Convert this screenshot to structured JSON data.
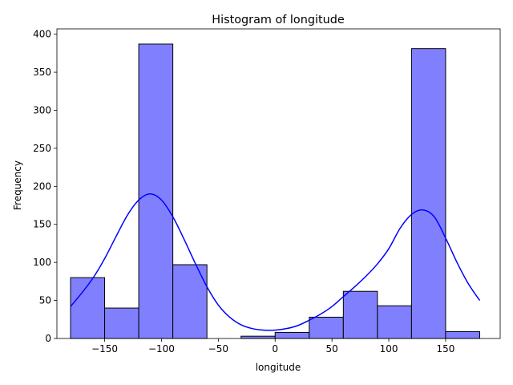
{
  "chart_data": {
    "type": "bar",
    "title": "Histogram of longitude",
    "xlabel": "longitude",
    "ylabel": "Frequency",
    "bins": [
      {
        "start": -180,
        "end": -150,
        "count": 80
      },
      {
        "start": -150,
        "end": -120,
        "count": 40
      },
      {
        "start": -120,
        "end": -90,
        "count": 387
      },
      {
        "start": -90,
        "end": -60,
        "count": 97
      },
      {
        "start": -60,
        "end": -30,
        "count": 0
      },
      {
        "start": -30,
        "end": 0,
        "count": 3
      },
      {
        "start": 0,
        "end": 30,
        "count": 8
      },
      {
        "start": 30,
        "end": 60,
        "count": 28
      },
      {
        "start": 60,
        "end": 90,
        "count": 62
      },
      {
        "start": 90,
        "end": 120,
        "count": 43
      },
      {
        "start": 120,
        "end": 150,
        "count": 381
      },
      {
        "start": 150,
        "end": 180,
        "count": 9
      }
    ],
    "kde": {
      "name": "density estimate",
      "x": [
        -180,
        -170,
        -160,
        -150,
        -140,
        -130,
        -120,
        -110,
        -100,
        -90,
        -80,
        -70,
        -60,
        -50,
        -40,
        -30,
        -20,
        -10,
        0,
        10,
        20,
        30,
        40,
        50,
        60,
        70,
        80,
        90,
        100,
        110,
        120,
        130,
        140,
        150,
        160,
        170,
        180
      ],
      "y": [
        42,
        60,
        80,
        105,
        134,
        162,
        182,
        190,
        182,
        160,
        130,
        98,
        68,
        44,
        28,
        18,
        13,
        11,
        11,
        13,
        17,
        24,
        32,
        42,
        55,
        68,
        82,
        98,
        118,
        145,
        163,
        169,
        160,
        132,
        100,
        72,
        50
      ]
    },
    "xlim": [
      -192,
      198
    ],
    "ylim": [
      0,
      407
    ],
    "xticks": [
      -150,
      -100,
      -50,
      0,
      50,
      100,
      150
    ],
    "xtick_labels": [
      "−150",
      "−100",
      "−50",
      "0",
      "50",
      "100",
      "150"
    ],
    "yticks": [
      0,
      50,
      100,
      150,
      200,
      250,
      300,
      350,
      400
    ],
    "ytick_labels": [
      "0",
      "50",
      "100",
      "150",
      "200",
      "250",
      "300",
      "350",
      "400"
    ],
    "bar_color": "#8080ff",
    "bar_edge_color": "#000000",
    "kde_color": "#0000ff",
    "grid": false,
    "legend": "none"
  }
}
